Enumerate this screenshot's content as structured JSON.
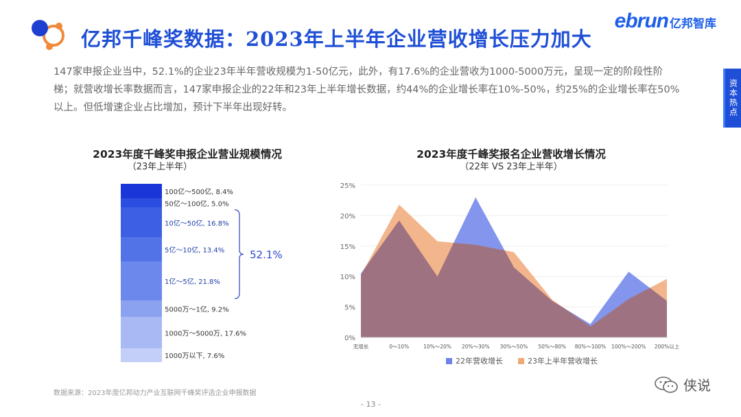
{
  "header": {
    "title": "亿邦千峰奖数据：2023年上半年企业营收增长压力加大",
    "brand_main": "ebrun",
    "brand_sub": "亿邦智库"
  },
  "side_tab": {
    "label": "资本热点"
  },
  "summary": "147家申报企业当中，52.1%的企业23年半年营收规模为1-50亿元，此外，有17.6%的企业营收为1000-5000万元，呈现一定的阶段性阶梯；就营收增长率数据而言，147家申报企业的22年和23年上半年增长数据，约44%的企业增长率在10%-50%，约25%的企业增长率在50%以上。但低增速企业占比增加，预计下半年出现好转。",
  "colors": {
    "accent": "#1f4fd6",
    "series_22": "#6d82ea",
    "series_23": "#f0a878",
    "overlap": "#9a6f80"
  },
  "chart_data": [
    {
      "type": "bar",
      "stacked": true,
      "title": "2023年度千峰奖申报企业营业规模情况",
      "subtitle": "（23年上半年）",
      "segments": [
        {
          "label": "100亿～500亿, 8.4%",
          "value": 8.4,
          "color": "#1a36d8"
        },
        {
          "label": "50亿～100亿, 5.0%",
          "value": 5.0,
          "color": "#2a4ee0"
        },
        {
          "label": "10亿～50亿, 16.8%",
          "value": 16.8,
          "color": "#3d5fe4"
        },
        {
          "label": "5亿～10亿, 13.4%",
          "value": 13.4,
          "color": "#5273e8"
        },
        {
          "label": "1亿～5亿, 21.8%",
          "value": 21.8,
          "color": "#6b88ec"
        },
        {
          "label": "5000万～1亿, 9.2%",
          "value": 9.2,
          "color": "#8ba2f0"
        },
        {
          "label": "1000万～5000万, 17.6%",
          "value": 17.6,
          "color": "#a8b9f4"
        },
        {
          "label": "1000万以下, 7.6%",
          "value": 7.6,
          "color": "#c3cff8"
        }
      ],
      "bracket_label": "52.1%"
    },
    {
      "type": "area",
      "title": "2023年度千峰奖报名企业营收增长情况",
      "subtitle": "（22年 VS 23年上半年）",
      "categories": [
        "无增长",
        "0～10%",
        "10%～20%",
        "20%～30%",
        "30%～50%",
        "50%～80%",
        "80%～100%",
        "100%～200%",
        "200%以上"
      ],
      "series": [
        {
          "name": "22年营收增长",
          "values": [
            10.5,
            19.2,
            10.0,
            23.0,
            11.5,
            6.0,
            2.2,
            10.8,
            6.0
          ]
        },
        {
          "name": "23年上半年营收增长",
          "values": [
            10.2,
            21.8,
            15.8,
            15.2,
            14.0,
            6.2,
            1.8,
            6.3,
            9.6
          ]
        }
      ],
      "ylim": [
        0,
        25
      ],
      "yticks": [
        "0%",
        "5%",
        "10%",
        "15%",
        "20%",
        "25%"
      ]
    }
  ],
  "footer": {
    "source": "数据来源：2023年度亿邦动力产业互联网千峰奖评选企业申报数据",
    "page": "- 13 -",
    "wechat_label": "侠说"
  }
}
